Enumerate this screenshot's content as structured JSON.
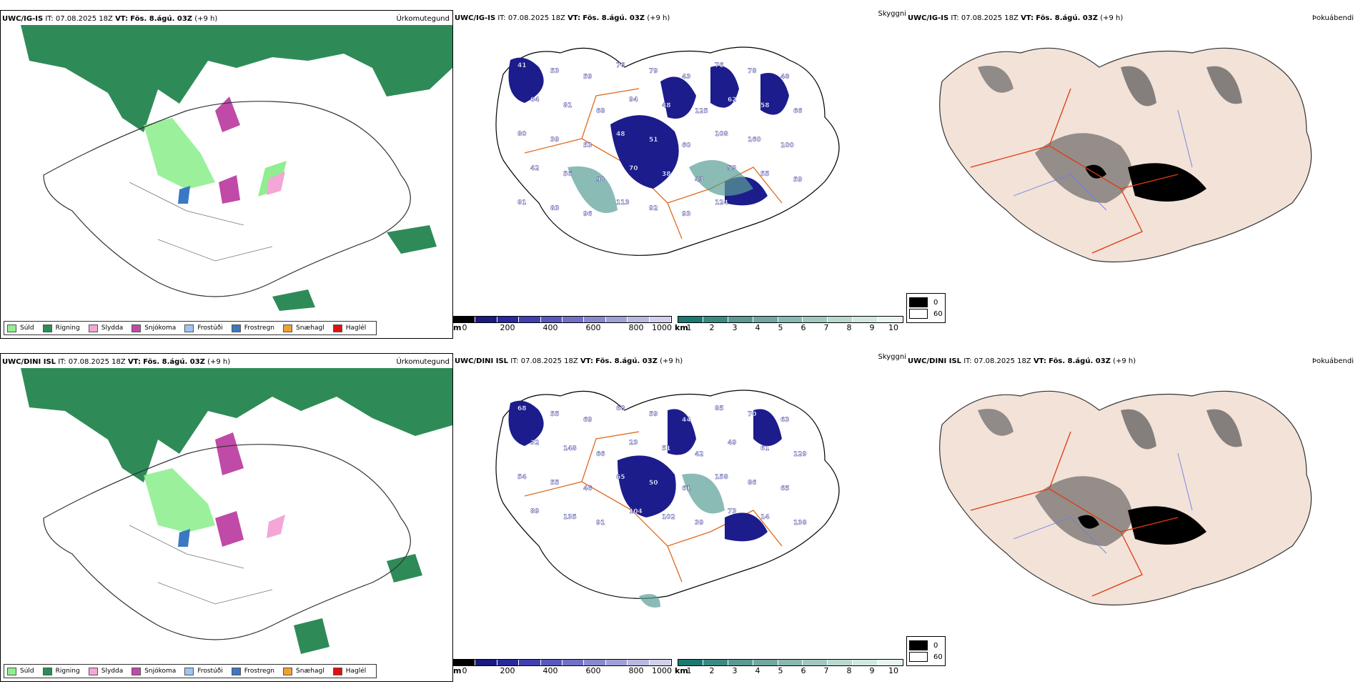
{
  "panels": [
    {
      "model": "UWC/IG-IS",
      "it": "IT: 07.08.2025 18Z",
      "vt_label": "VT:",
      "vt": "Fös. 8.ágú. 03Z",
      "lead": "(+9 h)",
      "precip_title": "Úrkomutegund",
      "cloud_title": "Skyggni",
      "fog_title": "Þokuábendi",
      "vis_labels": [
        "41",
        "53",
        "59",
        "76",
        "79",
        "43",
        "76",
        "78",
        "48",
        "64",
        "81",
        "68",
        "94",
        "48",
        "125",
        "62",
        "58",
        "66",
        "80",
        "39",
        "53",
        "48",
        "51",
        "60",
        "108",
        "160",
        "100",
        "42",
        "56",
        "98",
        "70",
        "38",
        "43",
        "53",
        "55",
        "59",
        "81",
        "83",
        "96",
        "113",
        "92",
        "93",
        "124"
      ]
    },
    {
      "model": "UWC/DINI ISL",
      "it": "IT: 07.08.2025 18Z",
      "vt_label": "VT:",
      "vt": "Fös. 8.ágú. 03Z",
      "lead": "(+9 h)",
      "precip_title": "Úrkomutegund",
      "cloud_title": "Skyggni",
      "fog_title": "Þokuábendi",
      "vis_labels": [
        "68",
        "55",
        "69",
        "68",
        "59",
        "44",
        "85",
        "70",
        "63",
        "32",
        "148",
        "66",
        "23",
        "51",
        "42",
        "49",
        "61",
        "129",
        "54",
        "55",
        "46",
        "65",
        "50",
        "61",
        "158",
        "86",
        "65",
        "89",
        "135",
        "91",
        "104",
        "102",
        "39",
        "73",
        "14",
        "138"
      ]
    }
  ],
  "precip_legend": [
    {
      "label": "Súld",
      "color": "#90ee90"
    },
    {
      "label": "Rigning",
      "color": "#2e8b57"
    },
    {
      "label": "Slydda",
      "color": "#f4a6d7"
    },
    {
      "label": "Snjókoma",
      "color": "#c04aa8"
    },
    {
      "label": "Frostúði",
      "color": "#a0c4f0"
    },
    {
      "label": "Frostregn",
      "color": "#3a78c4"
    },
    {
      "label": "Snæhagl",
      "color": "#f0a030"
    },
    {
      "label": "Haglél",
      "color": "#e01010"
    }
  ],
  "height_scale": {
    "unit": "m",
    "ticks": [
      "0",
      "200",
      "400",
      "600",
      "800",
      "1000"
    ],
    "colors": [
      "#000000",
      "#1a1a80",
      "#2828a0",
      "#4040b4",
      "#5858c0",
      "#7070c8",
      "#8888d0",
      "#a0a0d8",
      "#b8b8e0",
      "#d0d0ec"
    ]
  },
  "km_scale": {
    "unit": "km",
    "ticks": [
      "1",
      "2",
      "3",
      "4",
      "5",
      "6",
      "7",
      "8",
      "9",
      "10"
    ],
    "colors": [
      "#1a7a72",
      "#3a8a82",
      "#5a9a92",
      "#70a8a0",
      "#88b8b0",
      "#a0c8c0",
      "#b8d8d0",
      "#d0e8e0",
      "#e8f4f0"
    ]
  },
  "fog_legend": {
    "dark": "0",
    "light": "60"
  },
  "colors": {
    "rain": "#2e8b57",
    "drizzle": "#90ee90",
    "snow": "#c04aa8",
    "sleet": "#f4a6d7",
    "road": "#e06a20",
    "cloud_dark": "#1c1c8c",
    "cloud_teal": "#5a9e96",
    "land_fog": "#f2e2d8"
  }
}
